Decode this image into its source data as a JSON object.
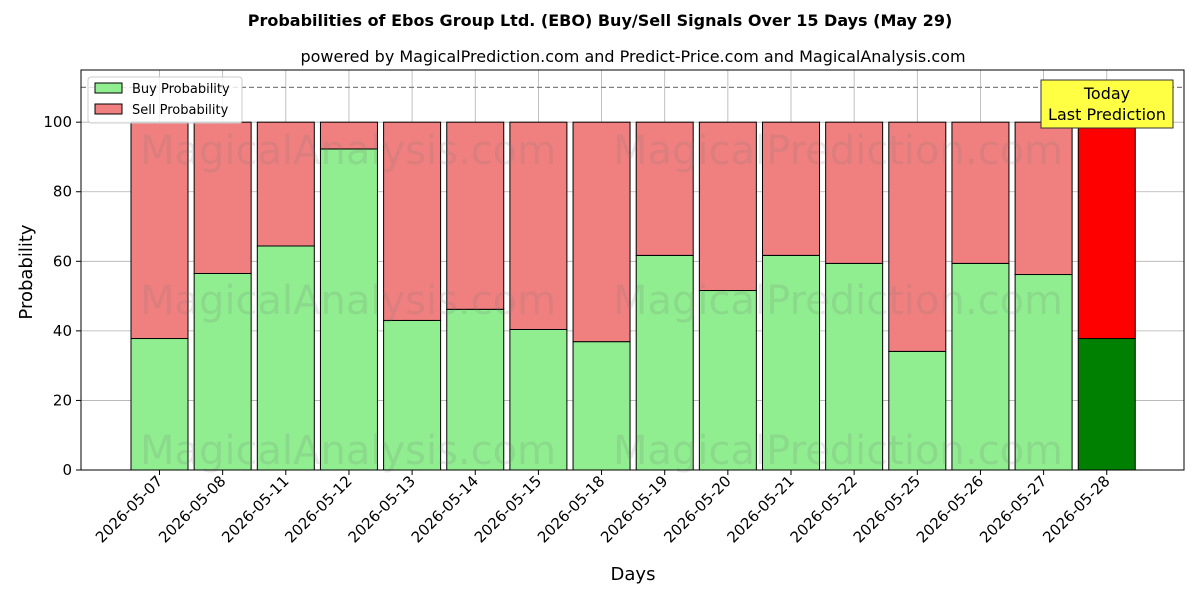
{
  "chart_data": {
    "type": "bar",
    "stacked": true,
    "title": "Probabilities of Ebos Group Ltd. (EBO) Buy/Sell Signals Over 15 Days (May 29)",
    "subtitle": "powered by MagicalPrediction.com and Predict-Price.com and MagicalAnalysis.com",
    "xlabel": "Days",
    "ylabel": "Probability",
    "ylim": [
      0,
      115
    ],
    "yticks": [
      0,
      20,
      40,
      60,
      80,
      100
    ],
    "reference_line": 110,
    "grid": true,
    "legend_position": "top-left",
    "categories": [
      "2026-05-07",
      "2026-05-08",
      "2026-05-11",
      "2026-05-12",
      "2026-05-13",
      "2026-05-14",
      "2026-05-15",
      "2026-05-18",
      "2026-05-19",
      "2026-05-20",
      "2026-05-21",
      "2026-05-22",
      "2026-05-25",
      "2026-05-26",
      "2026-05-27",
      "2026-05-28"
    ],
    "series": [
      {
        "name": "Buy Probability",
        "color": "#90ee90",
        "highlight_color": "#008000",
        "values": [
          37.8,
          56.5,
          64.4,
          92.3,
          43.0,
          46.2,
          40.4,
          36.9,
          61.7,
          51.6,
          61.7,
          59.4,
          34.1,
          59.4,
          56.2,
          37.8
        ]
      },
      {
        "name": "Sell Probability",
        "color": "#f08080",
        "highlight_color": "#ff0000",
        "values": [
          62.2,
          43.5,
          35.6,
          7.7,
          57.0,
          53.8,
          59.6,
          63.1,
          38.3,
          48.4,
          38.3,
          40.6,
          65.9,
          40.6,
          43.8,
          62.2
        ]
      }
    ],
    "annotation": {
      "lines": [
        "Today",
        "Last Prediction"
      ],
      "background": "#ffff44"
    },
    "watermarks": [
      "MagicalAnalysis.com",
      "MagicalPrediction.com"
    ]
  }
}
